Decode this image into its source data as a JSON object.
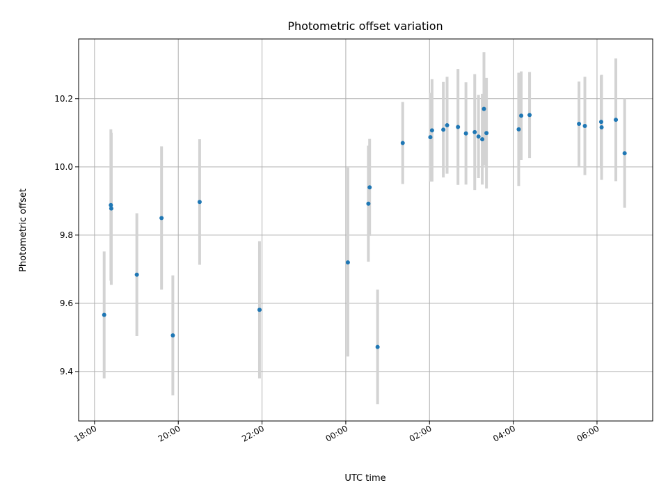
{
  "chart_data": {
    "type": "scatter",
    "title": "Photometric offset variation",
    "xlabel": "UTC time",
    "ylabel": "Photometric offset",
    "x_unit": "hours since 18:00 UTC",
    "xlim": [
      -0.38,
      13.33
    ],
    "ylim": [
      9.255,
      10.375
    ],
    "x_ticks": [
      {
        "value": 0,
        "label": "18:00"
      },
      {
        "value": 2,
        "label": "20:00"
      },
      {
        "value": 4,
        "label": "22:00"
      },
      {
        "value": 6,
        "label": "00:00"
      },
      {
        "value": 8,
        "label": "02:00"
      },
      {
        "value": 10,
        "label": "04:00"
      },
      {
        "value": 12,
        "label": "06:00"
      }
    ],
    "y_ticks": [
      {
        "value": 9.4,
        "label": "9.4"
      },
      {
        "value": 9.6,
        "label": "9.6"
      },
      {
        "value": 9.8,
        "label": "9.8"
      },
      {
        "value": 10.0,
        "label": "10.0"
      },
      {
        "value": 10.2,
        "label": "10.2"
      }
    ],
    "grid": true,
    "colors": {
      "point": "#1f77b4",
      "errorbar": "#d3d3d3",
      "grid": "#b0b0b0"
    },
    "points": [
      {
        "x": 0.23,
        "y": 9.566,
        "lo": 9.38,
        "hi": 9.752
      },
      {
        "x": 0.39,
        "y": 9.888,
        "lo": 9.666,
        "hi": 10.11
      },
      {
        "x": 0.4,
        "y": 9.878,
        "lo": 9.654,
        "hi": 10.1
      },
      {
        "x": 1.01,
        "y": 9.684,
        "lo": 9.504,
        "hi": 9.864
      },
      {
        "x": 1.6,
        "y": 9.85,
        "lo": 9.64,
        "hi": 10.06
      },
      {
        "x": 1.87,
        "y": 9.506,
        "lo": 9.33,
        "hi": 9.682
      },
      {
        "x": 2.51,
        "y": 9.897,
        "lo": 9.713,
        "hi": 10.081
      },
      {
        "x": 3.94,
        "y": 9.581,
        "lo": 9.38,
        "hi": 9.782
      },
      {
        "x": 6.05,
        "y": 9.72,
        "lo": 9.444,
        "hi": 9.998
      },
      {
        "x": 6.54,
        "y": 9.892,
        "lo": 9.722,
        "hi": 10.062
      },
      {
        "x": 6.57,
        "y": 9.94,
        "lo": 9.798,
        "hi": 10.082
      },
      {
        "x": 6.76,
        "y": 9.472,
        "lo": 9.304,
        "hi": 9.64
      },
      {
        "x": 7.36,
        "y": 10.07,
        "lo": 9.95,
        "hi": 10.19
      },
      {
        "x": 8.02,
        "y": 10.087,
        "lo": 9.957,
        "hi": 10.217
      },
      {
        "x": 8.06,
        "y": 10.107,
        "lo": 9.957,
        "hi": 10.257
      },
      {
        "x": 8.33,
        "y": 10.109,
        "lo": 9.969,
        "hi": 10.249
      },
      {
        "x": 8.42,
        "y": 10.122,
        "lo": 9.98,
        "hi": 10.264
      },
      {
        "x": 8.68,
        "y": 10.117,
        "lo": 9.947,
        "hi": 10.287
      },
      {
        "x": 8.87,
        "y": 10.098,
        "lo": 9.948,
        "hi": 10.248
      },
      {
        "x": 9.08,
        "y": 10.102,
        "lo": 9.932,
        "hi": 10.272
      },
      {
        "x": 9.17,
        "y": 10.089,
        "lo": 9.967,
        "hi": 10.211
      },
      {
        "x": 9.26,
        "y": 10.081,
        "lo": 9.948,
        "hi": 10.214
      },
      {
        "x": 9.3,
        "y": 10.17,
        "lo": 10.004,
        "hi": 10.336
      },
      {
        "x": 9.36,
        "y": 10.099,
        "lo": 9.937,
        "hi": 10.261
      },
      {
        "x": 10.13,
        "y": 10.11,
        "lo": 9.944,
        "hi": 10.276
      },
      {
        "x": 10.19,
        "y": 10.15,
        "lo": 10.02,
        "hi": 10.28
      },
      {
        "x": 10.39,
        "y": 10.152,
        "lo": 10.026,
        "hi": 10.278
      },
      {
        "x": 11.57,
        "y": 10.126,
        "lo": 10.002,
        "hi": 10.25
      },
      {
        "x": 11.71,
        "y": 10.12,
        "lo": 9.976,
        "hi": 10.264
      },
      {
        "x": 12.1,
        "y": 10.132,
        "lo": 9.996,
        "hi": 10.268
      },
      {
        "x": 12.11,
        "y": 10.116,
        "lo": 9.962,
        "hi": 10.27
      },
      {
        "x": 12.45,
        "y": 10.138,
        "lo": 9.958,
        "hi": 10.318
      },
      {
        "x": 12.66,
        "y": 10.04,
        "lo": 9.88,
        "hi": 10.2
      }
    ]
  }
}
